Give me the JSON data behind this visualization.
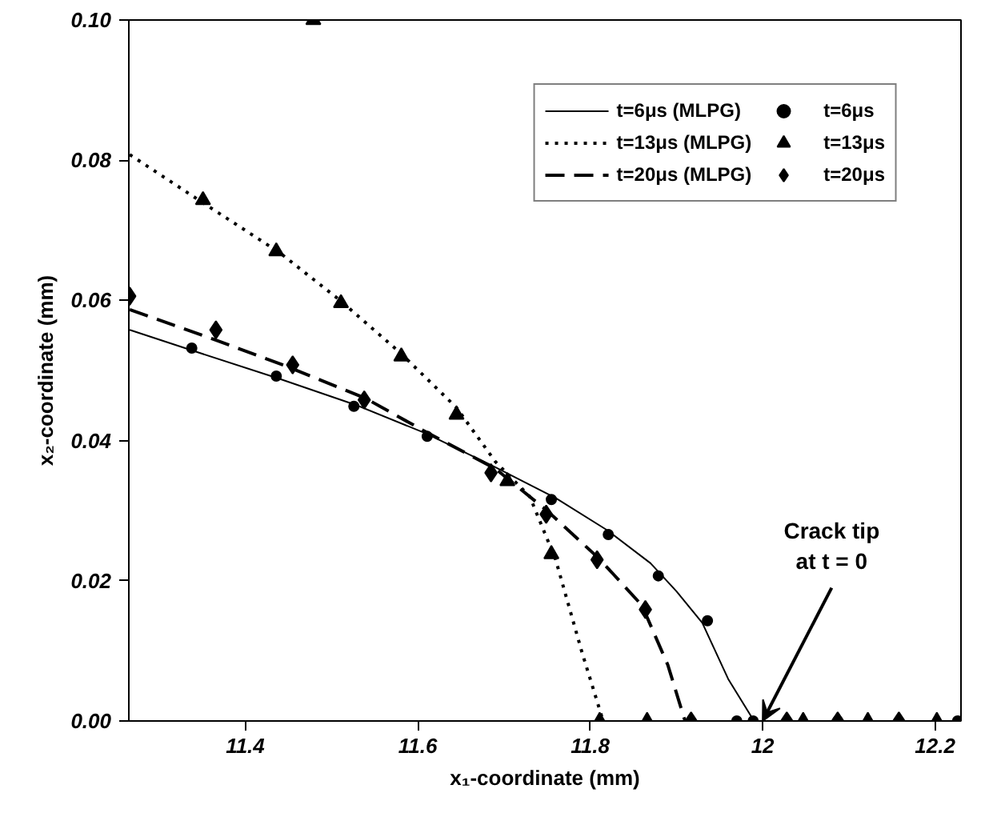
{
  "chart_data": {
    "type": "line",
    "xlabel": "x₁-coordinate (mm)",
    "ylabel": "x₂-coordinate (mm)",
    "xlim": [
      11.265,
      12.23
    ],
    "ylim": [
      0,
      0.1
    ],
    "xticks": [
      11.4,
      11.6,
      11.8,
      12.0,
      12.2
    ],
    "yticks": [
      {
        "value": 0,
        "label": "0.00"
      },
      {
        "value": 0.02,
        "label": "0.02"
      },
      {
        "value": 0.04,
        "label": "0.04"
      },
      {
        "value": 0.06,
        "label": "0.06"
      },
      {
        "value": 0.08,
        "label": "0.08"
      },
      {
        "value": 0.1,
        "label": "0.10"
      }
    ],
    "grid": false,
    "legend": "top right",
    "series": [
      {
        "name": "t=6μs (MLPG)",
        "line_style": "solid",
        "marker": "none",
        "color": "#000000",
        "x": [
          11.266,
          11.34,
          11.44,
          11.53,
          11.61,
          11.69,
          11.76,
          11.82,
          11.87,
          11.9,
          11.93,
          11.96,
          11.99
        ],
        "values": [
          0.0558,
          0.0528,
          0.0488,
          0.045,
          0.041,
          0.0362,
          0.0318,
          0.0272,
          0.0225,
          0.0185,
          0.014,
          0.006,
          0
        ]
      },
      {
        "name": "t=13μs (MLPG)",
        "line_style": "dotted",
        "marker": "none",
        "color": "#000000",
        "x": [
          11.266,
          11.35,
          11.44,
          11.51,
          11.58,
          11.645,
          11.69,
          11.73,
          11.76,
          11.79,
          11.815
        ],
        "values": [
          0.0808,
          0.074,
          0.0668,
          0.06,
          0.0525,
          0.0447,
          0.037,
          0.032,
          0.023,
          0.01,
          0
        ]
      },
      {
        "name": "t=20μs (MLPG)",
        "line_style": "dashed",
        "marker": "none",
        "color": "#000000",
        "x": [
          11.266,
          11.36,
          11.45,
          11.54,
          11.61,
          11.69,
          11.75,
          11.81,
          11.86,
          11.89,
          11.91
        ],
        "values": [
          0.0587,
          0.0546,
          0.0505,
          0.046,
          0.0412,
          0.036,
          0.03,
          0.0232,
          0.0165,
          0.008,
          0
        ]
      },
      {
        "name": "t=6μs",
        "type": "scatter",
        "marker": "circle",
        "color": "#000000",
        "x": [
          11.338,
          11.436,
          11.526,
          11.611,
          11.685,
          11.755,
          11.821,
          11.879,
          11.936,
          11.97,
          11.989,
          12.087,
          12.226
        ],
        "values": [
          0.0532,
          0.0492,
          0.0449,
          0.0406,
          null,
          0.0316,
          0.0266,
          0.0207,
          0.0143,
          0,
          0,
          0,
          0
        ]
      },
      {
        "name": "t=13μs",
        "type": "scatter",
        "marker": "triangle",
        "color": "#000000",
        "x": [
          11.351,
          11.436,
          11.479,
          11.511,
          11.581,
          11.645,
          11.704,
          11.755,
          11.811,
          11.866,
          12.047,
          12.122,
          12.202
        ],
        "values": [
          0.0743,
          0.067,
          0.1,
          0.0596,
          0.052,
          0.0437,
          0.0342,
          0.0238,
          0,
          0,
          0,
          0,
          0
        ]
      },
      {
        "name": "t=20μs",
        "type": "scatter",
        "marker": "diamond",
        "color": "#000000",
        "x": [
          11.266,
          11.366,
          11.455,
          11.538,
          11.611,
          11.685,
          11.749,
          11.808,
          11.864,
          11.917,
          12.028,
          12.087,
          12.158
        ],
        "values": [
          0.0606,
          0.0558,
          0.0508,
          0.0458,
          null,
          0.0354,
          0.0295,
          0.023,
          0.0159,
          0,
          0,
          0,
          0
        ]
      }
    ],
    "annotations": [
      {
        "text": "Crack tip\nat t = 0",
        "x": 12.0,
        "y": 0
      }
    ]
  }
}
